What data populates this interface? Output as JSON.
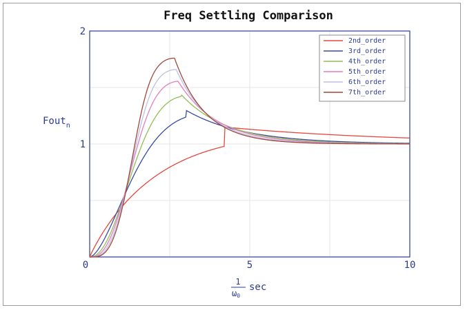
{
  "chart_data": {
    "type": "line",
    "title": "Freq Settling Comparison",
    "ylabel": "Fout",
    "ylabel_subscript": "n",
    "xlabel": {
      "numerator": "1",
      "denominator": "ω",
      "denominator_subscript": "0",
      "unit": "sec"
    },
    "xlim": [
      0,
      10
    ],
    "ylim": [
      0,
      2
    ],
    "x_ticks": [
      0,
      5,
      10
    ],
    "y_ticks": [
      1,
      2
    ],
    "origin_label": "0",
    "grid": true,
    "legend_position": "top-right",
    "series": [
      {
        "name": "2nd_order",
        "color": "#e8453c",
        "peak_x": 4.2,
        "peak_y": 1.15,
        "rise": 0.95,
        "decay": 0.18
      },
      {
        "name": "3rd_order",
        "color": "#3a4aa0",
        "peak_x": 3.0,
        "peak_y": 1.3,
        "rise": 1.7,
        "decay": 0.55
      },
      {
        "name": "4th_order",
        "color": "#8fbe54",
        "peak_x": 2.85,
        "peak_y": 1.44,
        "rise": 2.3,
        "decay": 0.7
      },
      {
        "name": "5th_order",
        "color": "#e07fc1",
        "peak_x": 2.75,
        "peak_y": 1.56,
        "rise": 2.8,
        "decay": 0.82
      },
      {
        "name": "6th_order",
        "color": "#bdbfe6",
        "peak_x": 2.7,
        "peak_y": 1.66,
        "rise": 3.3,
        "decay": 0.95
      },
      {
        "name": "7th_order",
        "color": "#a0463a",
        "peak_x": 2.65,
        "peak_y": 1.76,
        "rise": 3.8,
        "decay": 1.05
      }
    ]
  }
}
